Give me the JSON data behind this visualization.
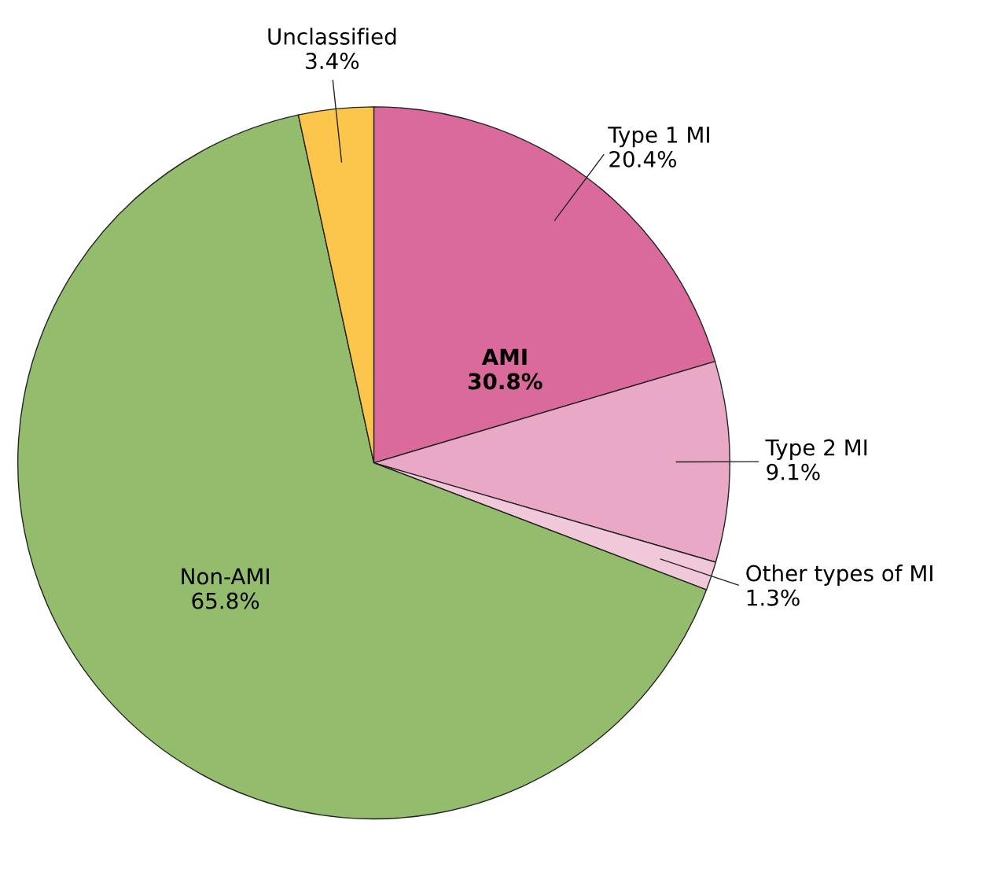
{
  "chart_data": {
    "type": "pie",
    "categories": [
      "Type 1 MI",
      "Type 2 MI",
      "Other types of MI",
      "Non-AMI",
      "Unclassified"
    ],
    "values": [
      20.4,
      9.1,
      1.3,
      65.8,
      3.4
    ],
    "value_labels": [
      "20.4%",
      "9.1%",
      "1.3%",
      "65.8%",
      "3.4%"
    ],
    "colors": [
      "#db6a9c",
      "#e8a8c6",
      "#f0c8da",
      "#93bd6c",
      "#fcc64c"
    ],
    "annotations": [
      "AMI",
      "30.8%"
    ]
  }
}
